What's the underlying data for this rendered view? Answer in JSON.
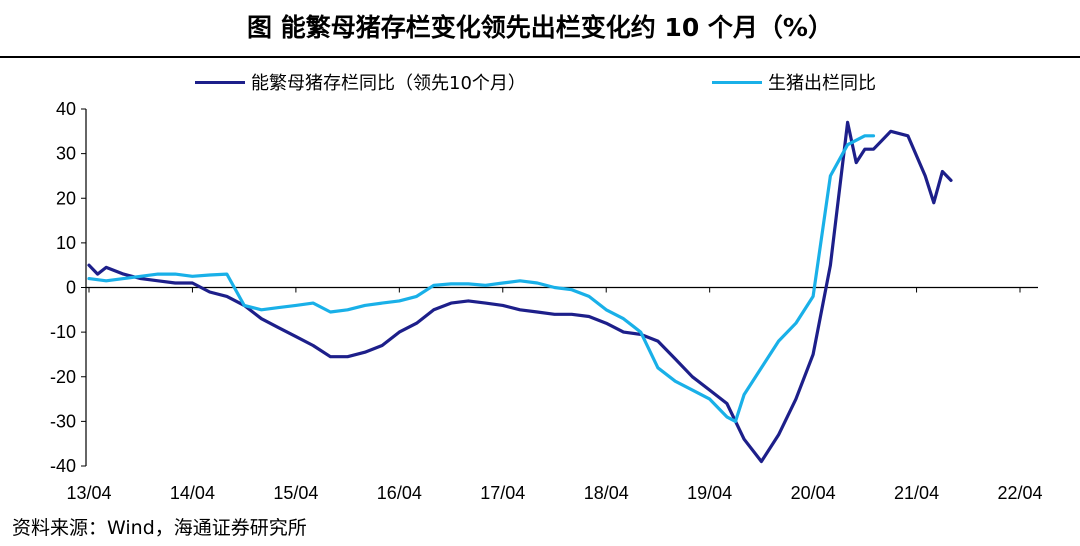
{
  "title": "图  能繁母猪存栏变化领先出栏变化约 10 个月（%）",
  "source": "资料来源：Wind，海通证券研究所",
  "chart_data": {
    "type": "line",
    "title": "图  能繁母猪存栏变化领先出栏变化约 10 个月（%）",
    "xlabel": "",
    "ylabel": "",
    "ylim": [
      -40,
      40
    ],
    "yticks": [
      40,
      30,
      20,
      10,
      0,
      -10,
      -20,
      -30,
      -40
    ],
    "xlim": [
      0,
      110
    ],
    "xticks": [
      {
        "value": 0,
        "label": "13/04"
      },
      {
        "value": 12,
        "label": "14/04"
      },
      {
        "value": 24,
        "label": "15/04"
      },
      {
        "value": 36,
        "label": "16/04"
      },
      {
        "value": 48,
        "label": "17/04"
      },
      {
        "value": 60,
        "label": "18/04"
      },
      {
        "value": 72,
        "label": "19/04"
      },
      {
        "value": 84,
        "label": "20/04"
      },
      {
        "value": 96,
        "label": "21/04"
      },
      {
        "value": 108,
        "label": "22/04"
      }
    ],
    "grid": false,
    "legend_position": "top",
    "series": [
      {
        "name": "能繁母猪存栏同比（领先10个月）",
        "color": "#1d1f8a",
        "points": [
          [
            0,
            5
          ],
          [
            1,
            3
          ],
          [
            2,
            4.5
          ],
          [
            4,
            3
          ],
          [
            6,
            2
          ],
          [
            8,
            1.5
          ],
          [
            10,
            1
          ],
          [
            12,
            1
          ],
          [
            14,
            -1
          ],
          [
            16,
            -2
          ],
          [
            18,
            -4
          ],
          [
            20,
            -7
          ],
          [
            22,
            -9
          ],
          [
            24,
            -11
          ],
          [
            26,
            -13
          ],
          [
            28,
            -15.5
          ],
          [
            30,
            -15.5
          ],
          [
            32,
            -14.5
          ],
          [
            34,
            -13
          ],
          [
            36,
            -10
          ],
          [
            38,
            -8
          ],
          [
            40,
            -5
          ],
          [
            42,
            -3.5
          ],
          [
            44,
            -3
          ],
          [
            46,
            -3.5
          ],
          [
            48,
            -4
          ],
          [
            50,
            -5
          ],
          [
            52,
            -5.5
          ],
          [
            54,
            -6
          ],
          [
            56,
            -6
          ],
          [
            58,
            -6.5
          ],
          [
            60,
            -8
          ],
          [
            62,
            -10
          ],
          [
            64,
            -10.5
          ],
          [
            66,
            -12
          ],
          [
            68,
            -16
          ],
          [
            70,
            -20
          ],
          [
            72,
            -23
          ],
          [
            74,
            -26
          ],
          [
            76,
            -34
          ],
          [
            78,
            -39
          ],
          [
            80,
            -33
          ],
          [
            82,
            -25
          ],
          [
            84,
            -15
          ],
          [
            86,
            5
          ],
          [
            88,
            37
          ],
          [
            89,
            28
          ],
          [
            90,
            31
          ],
          [
            91,
            31
          ],
          [
            93,
            35
          ],
          [
            95,
            34
          ],
          [
            97,
            25
          ],
          [
            98,
            19
          ],
          [
            99,
            26
          ],
          [
            100,
            24
          ]
        ]
      },
      {
        "name": "生猪出栏同比",
        "color": "#19b0e8",
        "points": [
          [
            0,
            2
          ],
          [
            2,
            1.5
          ],
          [
            4,
            2
          ],
          [
            6,
            2.5
          ],
          [
            8,
            3
          ],
          [
            10,
            3
          ],
          [
            12,
            2.5
          ],
          [
            14,
            2.8
          ],
          [
            16,
            3
          ],
          [
            18,
            -4
          ],
          [
            20,
            -5
          ],
          [
            22,
            -4.5
          ],
          [
            24,
            -4
          ],
          [
            26,
            -3.5
          ],
          [
            28,
            -5.5
          ],
          [
            30,
            -5
          ],
          [
            32,
            -4
          ],
          [
            34,
            -3.5
          ],
          [
            36,
            -3
          ],
          [
            38,
            -2
          ],
          [
            40,
            0.5
          ],
          [
            42,
            0.8
          ],
          [
            44,
            0.8
          ],
          [
            46,
            0.5
          ],
          [
            48,
            1
          ],
          [
            50,
            1.5
          ],
          [
            52,
            1
          ],
          [
            54,
            0
          ],
          [
            56,
            -0.5
          ],
          [
            58,
            -2
          ],
          [
            60,
            -5
          ],
          [
            62,
            -7
          ],
          [
            64,
            -10
          ],
          [
            66,
            -18
          ],
          [
            68,
            -21
          ],
          [
            70,
            -23
          ],
          [
            72,
            -25
          ],
          [
            74,
            -29
          ],
          [
            75,
            -30
          ],
          [
            76,
            -24
          ],
          [
            78,
            -18
          ],
          [
            80,
            -12
          ],
          [
            82,
            -8
          ],
          [
            84,
            -2
          ],
          [
            86,
            25
          ],
          [
            88,
            32
          ],
          [
            90,
            34
          ],
          [
            91,
            34
          ]
        ]
      }
    ]
  }
}
